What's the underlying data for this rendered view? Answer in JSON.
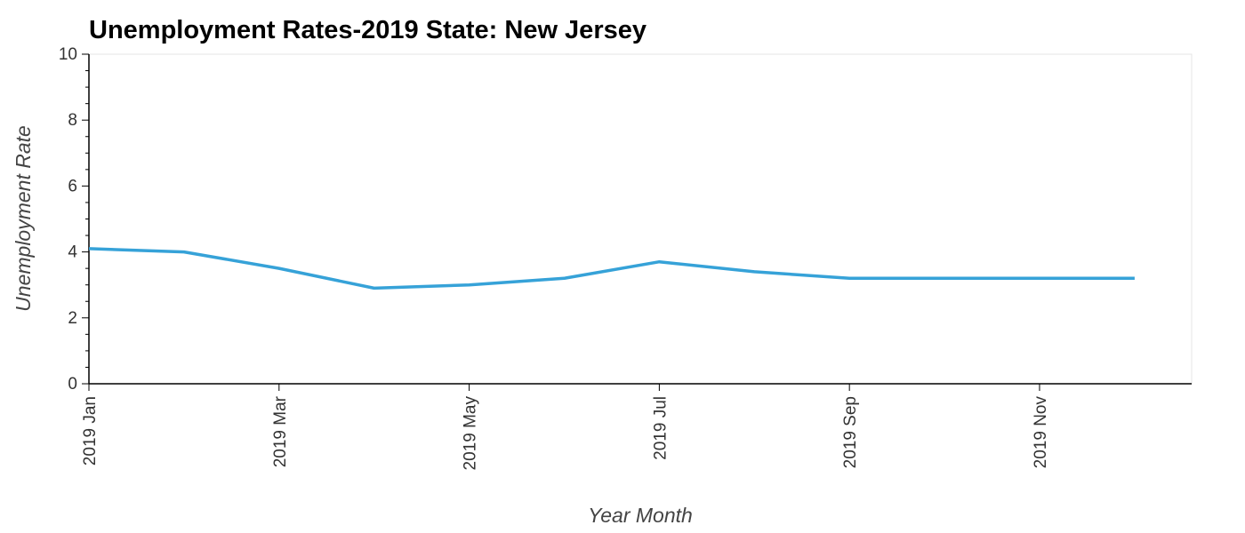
{
  "chart_data": {
    "type": "line",
    "title": "Unemployment Rates-2019  State: New Jersey",
    "xlabel": "Year Month",
    "ylabel": "Unemployment Rate",
    "ylim": [
      0,
      10
    ],
    "y_ticks": [
      0,
      2,
      4,
      6,
      8,
      10
    ],
    "x_ticks": [
      {
        "month": 1,
        "label": "2019 Jan"
      },
      {
        "month": 3,
        "label": "2019 Mar"
      },
      {
        "month": 5,
        "label": "2019 May"
      },
      {
        "month": 7,
        "label": "2019 Jul"
      },
      {
        "month": 9,
        "label": "2019 Sep"
      },
      {
        "month": 11,
        "label": "2019 Nov"
      }
    ],
    "x": [
      "2019-01",
      "2019-02",
      "2019-03",
      "2019-04",
      "2019-05",
      "2019-06",
      "2019-07",
      "2019-08",
      "2019-09",
      "2019-10",
      "2019-11",
      "2019-12"
    ],
    "series": [
      {
        "values": [
          4.1,
          4.0,
          3.5,
          2.9,
          3.0,
          3.2,
          3.7,
          3.4,
          3.2,
          3.2,
          3.2,
          3.2
        ],
        "color": "#36a2d8"
      }
    ],
    "grid": false,
    "frame_color": "#e5e5e5",
    "axis_color": "#000000"
  }
}
